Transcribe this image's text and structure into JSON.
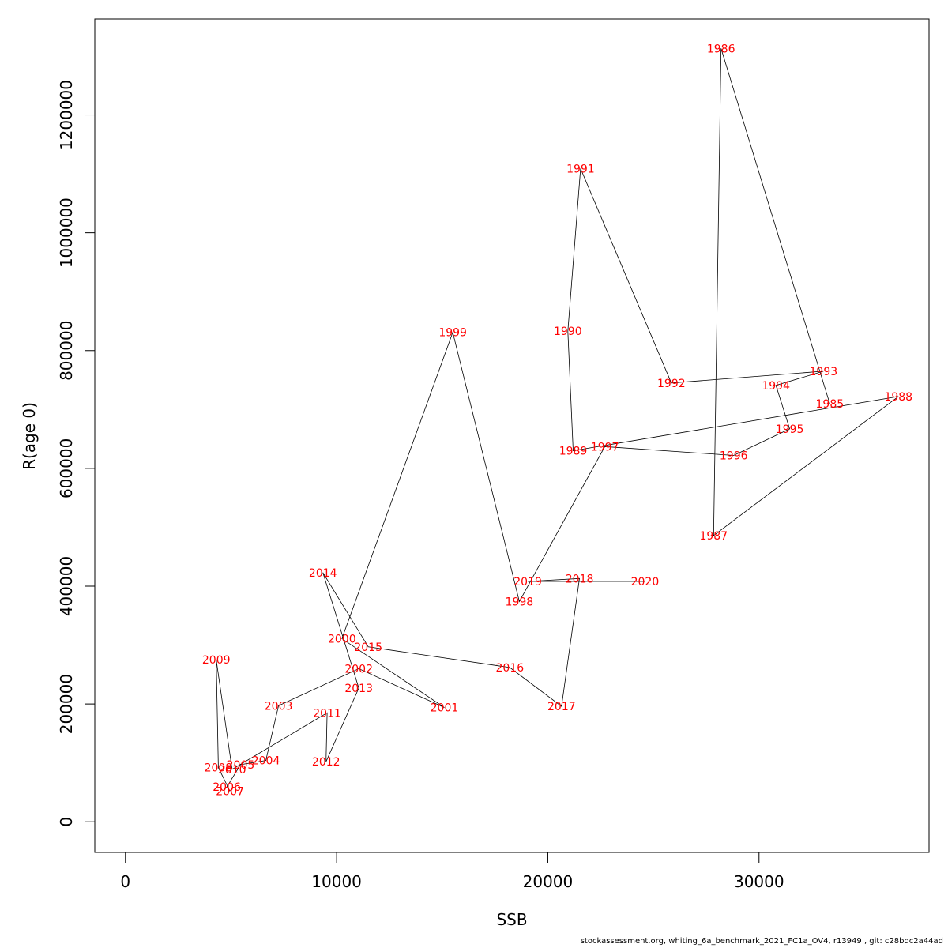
{
  "chart_data": {
    "type": "line",
    "xlabel": "SSB",
    "ylabel": "R(age 0)",
    "xlim": [
      -1450,
      38050
    ],
    "ylim": [
      -52000,
      1363000
    ],
    "x_ticks": [
      "0",
      "10000",
      "20000",
      "30000"
    ],
    "y_ticks": [
      "0",
      "200000",
      "400000",
      "600000",
      "800000",
      "1000000",
      "1200000"
    ],
    "label_color": "#ff0000",
    "line_color": "#000000",
    "points": [
      {
        "year": "1985",
        "x": 33350,
        "y": 710000
      },
      {
        "year": "1986",
        "x": 28200,
        "y": 1313000
      },
      {
        "year": "1987",
        "x": 27850,
        "y": 486000
      },
      {
        "year": "1988",
        "x": 36600,
        "y": 722000
      },
      {
        "year": "1989",
        "x": 21200,
        "y": 630000
      },
      {
        "year": "1990",
        "x": 20950,
        "y": 833000
      },
      {
        "year": "1991",
        "x": 21550,
        "y": 1109000
      },
      {
        "year": "1992",
        "x": 25850,
        "y": 745000
      },
      {
        "year": "1993",
        "x": 33050,
        "y": 765000
      },
      {
        "year": "1994",
        "x": 30800,
        "y": 741000
      },
      {
        "year": "1995",
        "x": 31450,
        "y": 667000
      },
      {
        "year": "1996",
        "x": 28800,
        "y": 622000
      },
      {
        "year": "1997",
        "x": 22700,
        "y": 637000
      },
      {
        "year": "1998",
        "x": 18650,
        "y": 374000
      },
      {
        "year": "1999",
        "x": 15500,
        "y": 831000
      },
      {
        "year": "2000",
        "x": 10250,
        "y": 311000
      },
      {
        "year": "2001",
        "x": 15100,
        "y": 194000
      },
      {
        "year": "2002",
        "x": 11050,
        "y": 260000
      },
      {
        "year": "2003",
        "x": 7250,
        "y": 197000
      },
      {
        "year": "2004",
        "x": 6650,
        "y": 104000
      },
      {
        "year": "2005",
        "x": 5450,
        "y": 97000
      },
      {
        "year": "2006",
        "x": 4800,
        "y": 59000
      },
      {
        "year": "2007",
        "x": 4950,
        "y": 52000
      },
      {
        "year": "2008",
        "x": 4400,
        "y": 92000
      },
      {
        "year": "2009",
        "x": 4300,
        "y": 275000
      },
      {
        "year": "2010",
        "x": 5050,
        "y": 89000
      },
      {
        "year": "2011",
        "x": 9550,
        "y": 185000
      },
      {
        "year": "2012",
        "x": 9500,
        "y": 102000
      },
      {
        "year": "2013",
        "x": 11050,
        "y": 227000
      },
      {
        "year": "2014",
        "x": 9350,
        "y": 423000
      },
      {
        "year": "2015",
        "x": 11500,
        "y": 297000
      },
      {
        "year": "2016",
        "x": 18200,
        "y": 262000
      },
      {
        "year": "2017",
        "x": 20650,
        "y": 196000
      },
      {
        "year": "2018",
        "x": 21500,
        "y": 413000
      },
      {
        "year": "2019",
        "x": 19050,
        "y": 408000
      },
      {
        "year": "2020",
        "x": 24600,
        "y": 408000
      }
    ]
  },
  "footnote": "stockassessment.org, whiting_6a_benchmark_2021_FC1a_OV4, r13949 , git: c28bdc2a44ad"
}
